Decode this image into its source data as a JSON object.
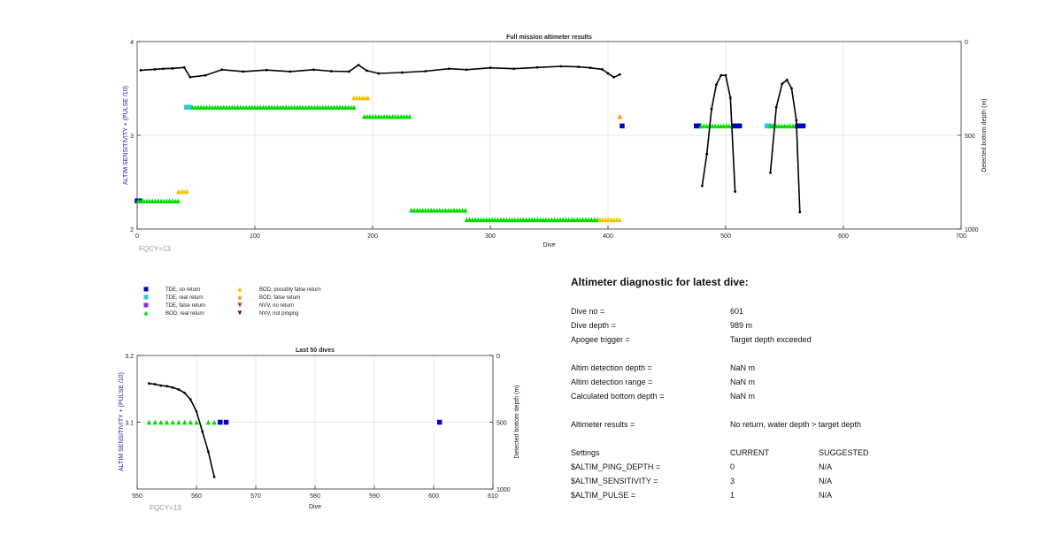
{
  "chart_data": [
    {
      "type": "scatter",
      "title": "Full mission altimeter results",
      "xlabel": "Dive",
      "ylabel": "ALTIM SENSITIVITY + (PULSE /10)",
      "ylabel_right": "Detected bottom depth (m)",
      "xlim": [
        0,
        700
      ],
      "ylim": [
        2,
        4
      ],
      "ylim_right": [
        0,
        1000
      ],
      "right_axis_reversed": true,
      "xticks": [
        0,
        100,
        200,
        300,
        400,
        500,
        600,
        700
      ],
      "yticks": [
        2,
        3,
        4
      ],
      "yticks_right": [
        0,
        500,
        1000
      ],
      "grid": true,
      "annotation": "FQCY=13",
      "segments": [
        {
          "class": "tde_no_return",
          "x": [
            0,
            4
          ],
          "y": 2.3
        },
        {
          "class": "bod_real_return",
          "x": [
            1,
            36
          ],
          "y": 2.3
        },
        {
          "class": "bod_possibly_false",
          "x": [
            35,
            44
          ],
          "y": 2.4
        },
        {
          "class": "tde_real_return",
          "x": [
            42,
            46
          ],
          "y": 3.3
        },
        {
          "class": "bod_real_return",
          "x": [
            47,
            186
          ],
          "y": 3.3
        },
        {
          "class": "bod_possibly_false",
          "x": [
            184,
            196
          ],
          "y": 3.4
        },
        {
          "class": "bod_real_return",
          "x": [
            193,
            232
          ],
          "y": 3.2
        },
        {
          "class": "bod_real_return",
          "x": [
            233,
            281
          ],
          "y": 2.2
        },
        {
          "class": "bod_real_return",
          "x": [
            280,
            395
          ],
          "y": 2.1
        },
        {
          "class": "bod_possibly_false",
          "x": [
            393,
            412
          ],
          "y": 2.1
        },
        {
          "class": "bod_false_return",
          "x": [
            410,
            412
          ],
          "y": 3.2
        },
        {
          "class": "tde_no_return",
          "x": [
            412,
            414
          ],
          "y": 3.1
        },
        {
          "class": "tde_no_return",
          "x": [
            475,
            479
          ],
          "y": 3.1
        },
        {
          "class": "bod_real_return",
          "x": [
            479,
            507
          ],
          "y": 3.1
        },
        {
          "class": "tde_no_return",
          "x": [
            507,
            512
          ],
          "y": 3.1
        },
        {
          "class": "tde_real_return",
          "x": [
            535,
            538
          ],
          "y": 3.1
        },
        {
          "class": "bod_real_return",
          "x": [
            538,
            561
          ],
          "y": 3.1
        },
        {
          "class": "tde_no_return",
          "x": [
            561,
            566
          ],
          "y": 3.1
        }
      ],
      "depth_series": [
        {
          "x": [
            3,
            15,
            22,
            30,
            40,
            45,
            58,
            72,
            90,
            110,
            130,
            150,
            165,
            180,
            188,
            195,
            205,
            225,
            245,
            265,
            280,
            300,
            320,
            340,
            360,
            375,
            385,
            395,
            400,
            405,
            410
          ],
          "y": [
            153,
            148,
            145,
            143,
            138,
            190,
            180,
            150,
            160,
            152,
            160,
            150,
            158,
            160,
            125,
            155,
            170,
            165,
            158,
            145,
            150,
            140,
            145,
            138,
            132,
            135,
            140,
            148,
            170,
            190,
            176
          ]
        },
        {
          "x": [
            480,
            484,
            488,
            492,
            496,
            500,
            504,
            508
          ],
          "y": [
            770,
            600,
            360,
            230,
            180,
            180,
            300,
            800
          ]
        },
        {
          "x": [
            538,
            543,
            548,
            552,
            556,
            560,
            563
          ],
          "y": [
            700,
            350,
            225,
            205,
            250,
            420,
            910
          ]
        }
      ]
    },
    {
      "type": "scatter",
      "title": "Last 50 dives",
      "xlabel": "Dive",
      "ylabel": "ALTIM SENSITIVITY + (PULSE /10)",
      "ylabel_right": "Detected bottom depth (m)",
      "xlim": [
        550,
        610
      ],
      "ylim": [
        3.0,
        3.2
      ],
      "ylim_right": [
        0,
        1000
      ],
      "right_axis_reversed": true,
      "xticks": [
        550,
        560,
        570,
        580,
        590,
        600,
        610
      ],
      "yticks": [
        3.1,
        3.2
      ],
      "yticks_right": [
        0,
        500,
        1000
      ],
      "grid": true,
      "annotation": "FQCY=13",
      "points": [
        {
          "class": "bod_real_return",
          "x": [
            552,
            553,
            554,
            555,
            556,
            557,
            558,
            559,
            560,
            562,
            563
          ],
          "y": 3.1
        },
        {
          "class": "tde_no_return",
          "x": [
            564,
            565,
            601
          ],
          "y": 3.1
        }
      ],
      "depth_series": [
        {
          "x": [
            552,
            553,
            554,
            555,
            556,
            557,
            558,
            559,
            560,
            561,
            562,
            563
          ],
          "y": [
            210,
            215,
            225,
            230,
            240,
            255,
            280,
            330,
            420,
            570,
            720,
            910
          ]
        }
      ]
    }
  ],
  "legend": [
    {
      "label": "TDE, no return",
      "marker": "square",
      "color": "#0000c0"
    },
    {
      "label": "TDE, real return",
      "marker": "square",
      "color": "#29c8e6"
    },
    {
      "label": "TDE, false return",
      "marker": "square",
      "color": "#8a2be2"
    },
    {
      "label": "BOD, real return",
      "marker": "triangle-up",
      "color": "#00dd00"
    },
    {
      "label": "BOD, possibly false return",
      "marker": "triangle-up",
      "color": "#f0c800"
    },
    {
      "label": "BOD, false return",
      "marker": "triangle-up",
      "color": "#ff8c00"
    },
    {
      "label": "NVV, no return",
      "marker": "triangle-down",
      "color": "#d82020"
    },
    {
      "label": "NVV, not pinging",
      "marker": "triangle-down",
      "color": "#7a1010"
    }
  ],
  "class_colors": {
    "tde_no_return": "#0000c0",
    "tde_real_return": "#29c8e6",
    "tde_false_return": "#8a2be2",
    "bod_real_return": "#00dd00",
    "bod_possibly_false": "#f0c800",
    "bod_false_return": "#ff8c00",
    "nvv_no_return": "#d82020",
    "nvv_not_pinging": "#7a1010"
  },
  "axis_label_color": "#1a1aa6",
  "diagnostic": {
    "title": "Altimeter diagnostic for latest dive:",
    "dive_no_label": "Dive no =",
    "dive_no_value": "601",
    "dive_depth_label": "Dive depth =",
    "dive_depth_value": "989 m",
    "apogee_label": "Apogee trigger =",
    "apogee_value": "Target depth exceeded",
    "det_depth_label": "Altim detection depth =",
    "det_depth_value": "NaN m",
    "det_range_label": "Altim detection range =",
    "det_range_value": "NaN m",
    "calc_depth_label": "Calculated bottom depth =",
    "calc_depth_value": "NaN m",
    "results_label": "Altimeter results =",
    "results_value": "No return, water depth > target depth",
    "settings_label": "Settings",
    "current_label": "CURRENT",
    "suggested_label": "SUGGESTED",
    "settings": [
      {
        "name": "$ALTIM_PING_DEPTH =",
        "current": "0",
        "suggested": "N/A"
      },
      {
        "name": "$ALTIM_SENSITIVITY =",
        "current": "3",
        "suggested": "N/A"
      },
      {
        "name": "$ALTIM_PULSE =",
        "current": "1",
        "suggested": "N/A"
      }
    ]
  }
}
